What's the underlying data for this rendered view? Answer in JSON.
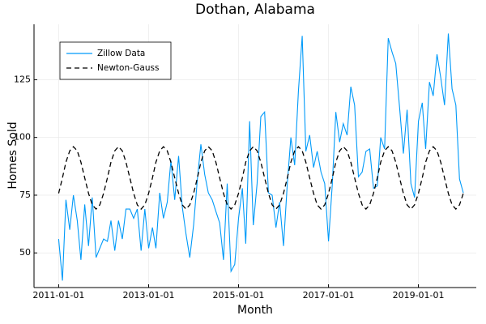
{
  "chart_data": {
    "type": "line",
    "title": "Dothan, Alabama",
    "x_label": "Month",
    "y_label": "Homes Sold",
    "x": [
      "2011-01-01",
      "2011-02-01",
      "2011-03-01",
      "2011-04-01",
      "2011-05-01",
      "2011-06-01",
      "2011-07-01",
      "2011-08-01",
      "2011-09-01",
      "2011-10-01",
      "2011-11-01",
      "2011-12-01",
      "2012-01-01",
      "2012-02-01",
      "2012-03-01",
      "2012-04-01",
      "2012-05-01",
      "2012-06-01",
      "2012-07-01",
      "2012-08-01",
      "2012-09-01",
      "2012-10-01",
      "2012-11-01",
      "2012-12-01",
      "2013-01-01",
      "2013-02-01",
      "2013-03-01",
      "2013-04-01",
      "2013-05-01",
      "2013-06-01",
      "2013-07-01",
      "2013-08-01",
      "2013-09-01",
      "2013-10-01",
      "2013-11-01",
      "2013-12-01",
      "2014-01-01",
      "2014-02-01",
      "2014-03-01",
      "2014-04-01",
      "2014-05-01",
      "2014-06-01",
      "2014-07-01",
      "2014-08-01",
      "2014-09-01",
      "2014-10-01",
      "2014-11-01",
      "2014-12-01",
      "2015-01-01",
      "2015-02-01",
      "2015-03-01",
      "2015-04-01",
      "2015-05-01",
      "2015-06-01",
      "2015-07-01",
      "2015-08-01",
      "2015-09-01",
      "2015-10-01",
      "2015-11-01",
      "2015-12-01",
      "2016-01-01",
      "2016-02-01",
      "2016-03-01",
      "2016-04-01",
      "2016-05-01",
      "2016-06-01",
      "2016-07-01",
      "2016-08-01",
      "2016-09-01",
      "2016-10-01",
      "2016-11-01",
      "2016-12-01",
      "2017-01-01",
      "2017-02-01",
      "2017-03-01",
      "2017-04-01",
      "2017-05-01",
      "2017-06-01",
      "2017-07-01",
      "2017-08-01",
      "2017-09-01",
      "2017-10-01",
      "2017-11-01",
      "2017-12-01",
      "2018-01-01",
      "2018-02-01",
      "2018-03-01",
      "2018-04-01",
      "2018-05-01",
      "2018-06-01",
      "2018-07-01",
      "2018-08-01",
      "2018-09-01",
      "2018-10-01",
      "2018-11-01",
      "2018-12-01",
      "2019-01-01",
      "2019-02-01",
      "2019-03-01",
      "2019-04-01",
      "2019-05-01",
      "2019-06-01",
      "2019-07-01",
      "2019-08-01",
      "2019-09-01",
      "2019-10-01",
      "2019-11-01",
      "2019-12-01",
      "2020-01-01"
    ],
    "series": [
      {
        "name": "Zillow Data",
        "color": "#009af9",
        "dash": false,
        "values": [
          56,
          38,
          73,
          60,
          75,
          64,
          47,
          71,
          53,
          74,
          48,
          52,
          56,
          55,
          64,
          51,
          64,
          56,
          69,
          69,
          65,
          69,
          51,
          69,
          52,
          61,
          52,
          76,
          65,
          72,
          90,
          73,
          92,
          70,
          58,
          48,
          62,
          82,
          97,
          84,
          76,
          73,
          68,
          63,
          47,
          80,
          42,
          45,
          65,
          78,
          54,
          107,
          62,
          80,
          109,
          111,
          76,
          75,
          61,
          72,
          53,
          80,
          100,
          88,
          120,
          144,
          94,
          101,
          87,
          94,
          85,
          80,
          55,
          80,
          111,
          98,
          106,
          101,
          122,
          114,
          83,
          85,
          94,
          95,
          78,
          79,
          100,
          95,
          143,
          137,
          132,
          113,
          93,
          112,
          80,
          74,
          107,
          115,
          95,
          124,
          118,
          136,
          126,
          114,
          145,
          121,
          114,
          82,
          76
        ]
      },
      {
        "name": "Newton-Gauss",
        "color": "#000000",
        "dash": true,
        "values": [
          75.8,
          82.5,
          89.3,
          94.2,
          96,
          94.2,
          89.3,
          82.5,
          75.8,
          70.8,
          69,
          70.8,
          75.8,
          82.5,
          89.3,
          94.2,
          96,
          94.2,
          89.3,
          82.5,
          75.8,
          70.8,
          69,
          70.8,
          75.8,
          82.5,
          89.3,
          94.2,
          96,
          94.2,
          89.3,
          82.5,
          75.8,
          70.8,
          69,
          70.8,
          75.8,
          82.5,
          89.3,
          94.2,
          96,
          94.2,
          89.3,
          82.5,
          75.8,
          70.8,
          69,
          70.8,
          75.8,
          82.5,
          89.3,
          94.2,
          96,
          94.2,
          89.3,
          82.5,
          75.8,
          70.8,
          69,
          70.8,
          75.8,
          82.5,
          89.3,
          94.2,
          96,
          94.2,
          89.3,
          82.5,
          75.8,
          70.8,
          69,
          70.8,
          75.8,
          82.5,
          89.3,
          94.2,
          96,
          94.2,
          89.3,
          82.5,
          75.8,
          70.8,
          69,
          70.8,
          75.8,
          82.5,
          89.3,
          94.2,
          96,
          94.2,
          89.3,
          82.5,
          75.8,
          70.8,
          69,
          70.8,
          75.8,
          82.5,
          89.3,
          94.2,
          96,
          94.2,
          89.3,
          82.5,
          75.8,
          70.8,
          69,
          70.8,
          75.8
        ]
      }
    ],
    "xlim": [
      "2010-06-15",
      "2020-04-15"
    ],
    "xticks": [
      "2011-01-01",
      "2013-01-01",
      "2015-01-01",
      "2017-01-01",
      "2019-01-01"
    ],
    "ylim": [
      35,
      149
    ],
    "yticks": [
      50,
      75,
      100,
      125
    ],
    "grid": true,
    "legend": "top-left"
  }
}
